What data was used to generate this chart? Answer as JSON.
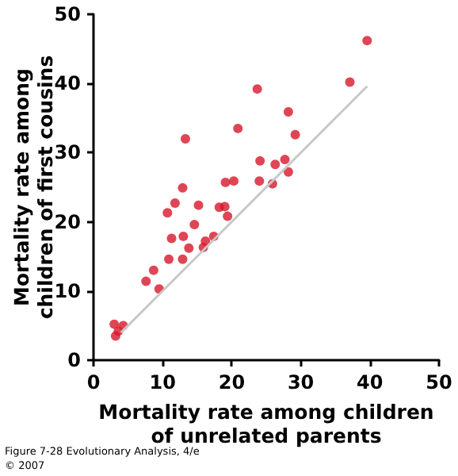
{
  "chart_data": {
    "type": "scatter",
    "xlabel": "Mortality rate among children\nof unrelated parents",
    "ylabel": "Mortality rate among\nchildren of first cousins",
    "annotations": [
      "Figure 7-28 Evolutionary Analysis, 4/e",
      "© 2007"
    ],
    "xlim": [
      0,
      50
    ],
    "xticks": [
      0,
      10,
      20,
      30,
      40,
      50
    ],
    "ylim": [
      0,
      50
    ],
    "yticks": [
      0,
      10,
      20,
      30,
      40,
      50
    ],
    "grid": false,
    "marker": "circle",
    "series": [
      {
        "color": "#d7182a",
        "x": [
          39.6,
          37.1,
          23.7,
          28.2,
          29.2,
          20.9,
          13.3,
          24.1,
          26.3,
          27.7,
          28.2,
          24.0,
          25.9,
          19.1,
          20.3,
          12.9,
          11.8,
          10.7,
          15.2,
          18.2,
          19.0,
          19.4,
          14.6,
          11.3,
          13.0,
          17.4,
          16.2,
          15.9,
          13.8,
          10.9,
          12.9,
          7.6,
          8.7,
          9.5,
          3.0,
          null,
          3.2,
          3.6,
          4.3
        ],
        "values": [
          46.2,
          40.2,
          39.2,
          35.9,
          32.6,
          33.5,
          32.0,
          28.8,
          28.3,
          29.0,
          27.2,
          25.9,
          25.5,
          25.7,
          25.9,
          24.9,
          22.7,
          21.3,
          22.4,
          22.1,
          22.2,
          20.8,
          19.6,
          17.6,
          17.9,
          17.9,
          17.2,
          16.3,
          16.2,
          14.6,
          14.6,
          11.4,
          13.0,
          10.3,
          5.2,
          null,
          3.5,
          4.2,
          5.0
        ]
      },
      {
        "type": "line",
        "color": "#c8c8c8",
        "marker": "none",
        "x": [
          4,
          39.6
        ],
        "values": [
          4,
          39.6
        ]
      }
    ]
  }
}
